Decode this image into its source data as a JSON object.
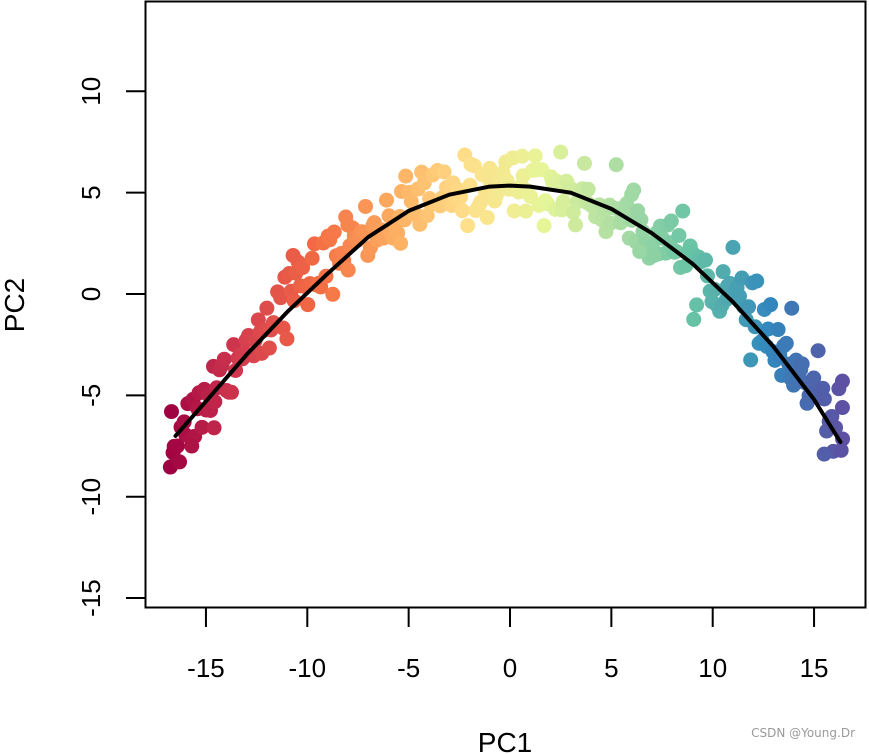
{
  "chart_data": {
    "type": "scatter",
    "title": "",
    "xlabel": "PC1",
    "ylabel": "PC2",
    "xlim": [
      -18,
      17.7
    ],
    "ylim": [
      -15.5,
      14.6
    ],
    "x_ticks": [
      -15,
      -10,
      -5,
      0,
      5,
      10,
      15
    ],
    "y_ticks": [
      -15,
      -10,
      -5,
      0,
      5,
      10
    ],
    "grid": false,
    "legend": null,
    "color_scheme": "Spectral (by PC1: dark red at left -> yellow center -> purple/blue at right)",
    "palette": [
      "#9E0142",
      "#D53E4F",
      "#F46D43",
      "#FDAE61",
      "#FEE08B",
      "#E6F598",
      "#ABDDA4",
      "#66C2A5",
      "#3288BD",
      "#5E4FA2"
    ],
    "fitted_curve": {
      "description": "principal curve / quadratic fit",
      "color": "#000000",
      "points": [
        [
          -16.5,
          -7.0
        ],
        [
          -15,
          -5.3
        ],
        [
          -13,
          -3.0
        ],
        [
          -11,
          -0.9
        ],
        [
          -9,
          1.0
        ],
        [
          -7,
          2.8
        ],
        [
          -5,
          4.1
        ],
        [
          -3,
          4.9
        ],
        [
          -1,
          5.3
        ],
        [
          0,
          5.35
        ],
        [
          1,
          5.3
        ],
        [
          3,
          5.0
        ],
        [
          5,
          4.2
        ],
        [
          7,
          3.0
        ],
        [
          9,
          1.5
        ],
        [
          11,
          -0.4
        ],
        [
          13,
          -2.6
        ],
        [
          15,
          -5.2
        ],
        [
          16.3,
          -7.3
        ]
      ]
    },
    "scatter": {
      "n_points_approx": 300,
      "x_range": [
        -16.8,
        16.5
      ],
      "y_range": [
        -8.0,
        7.0
      ],
      "noise_sd_approx": 0.8,
      "notable_points": [
        [
          -16.7,
          -5.8
        ],
        [
          -15.7,
          -7.5
        ],
        [
          -14.6,
          -6.6
        ],
        [
          -13.2,
          -3.2
        ],
        [
          -10.7,
          1.9
        ],
        [
          -8.0,
          3.4
        ],
        [
          -5.4,
          2.5
        ],
        [
          -1.0,
          6.2
        ],
        [
          0.6,
          6.8
        ],
        [
          2.5,
          7.0
        ],
        [
          6.0,
          4.9
        ],
        [
          6.4,
          2.1
        ],
        [
          7.1,
          1.9
        ],
        [
          11.0,
          2.3
        ],
        [
          13.9,
          -0.7
        ],
        [
          15.2,
          -2.8
        ],
        [
          15.5,
          -7.9
        ],
        [
          16.4,
          -4.3
        ],
        [
          16.4,
          -5.6
        ]
      ]
    }
  },
  "watermark": "CSDN @Young.Dr"
}
